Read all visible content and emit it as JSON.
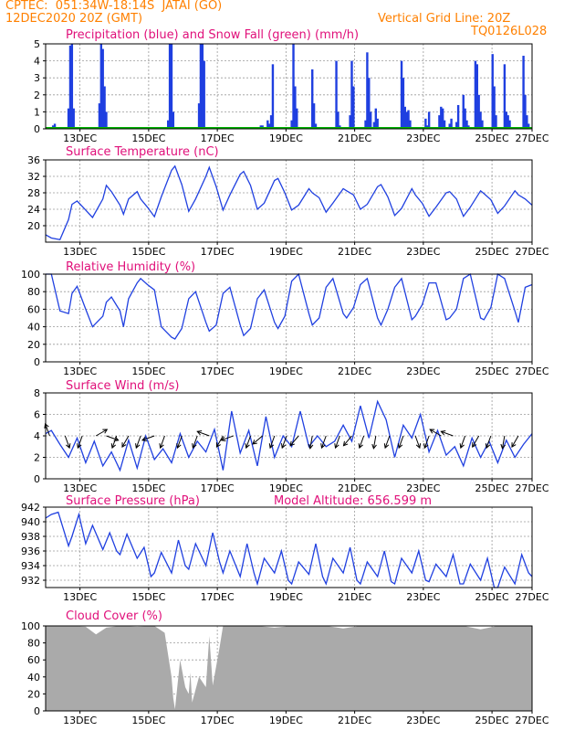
{
  "header": {
    "line1": "CPTEC:  051:34W-18:14S  JATAI (GO)",
    "line2": "12DEC2020 20Z (GMT)",
    "grid_note": "Vertical Grid Line: 20Z",
    "model_code": "TQ0126L028"
  },
  "colors": {
    "header": "#ff8000",
    "panel_title": "#e0107a",
    "precip": "#1f3fe0",
    "snow": "#00b400",
    "line": "#2040e0",
    "cloud": "#aaaaaa",
    "wind_arrow": "#000000",
    "grid": "#9a9a9a"
  },
  "time_axis": {
    "labels": [
      "13DEC",
      "15DEC",
      "17DEC",
      "19DEC",
      "21DEC",
      "23DEC",
      "25DEC",
      "27DEC"
    ],
    "range_days": [
      12.833,
      27.0
    ]
  },
  "chart_data": [
    {
      "id": "precip",
      "type": "bar",
      "title": "Precipitation (blue) and Snow Fall (green) (mm/h)",
      "ylim": [
        0,
        5
      ],
      "yticks": [
        0,
        1,
        2,
        3,
        4,
        5
      ],
      "grid": true,
      "x": [
        13.05,
        13.1,
        13.15,
        13.5,
        13.55,
        13.6,
        13.65,
        14.4,
        14.45,
        14.5,
        14.55,
        14.6,
        16.4,
        16.45,
        16.5,
        16.55,
        17.3,
        17.35,
        17.4,
        17.45,
        19.1,
        19.15,
        19.3,
        19.35,
        19.4,
        19.45,
        20.0,
        20.05,
        20.1,
        20.15,
        20.6,
        20.65,
        20.7,
        21.3,
        21.35,
        21.4,
        21.7,
        21.75,
        21.8,
        22.15,
        22.2,
        22.25,
        22.3,
        22.4,
        22.45,
        22.5,
        23.2,
        23.25,
        23.3,
        23.35,
        23.4,
        23.45,
        23.9,
        23.95,
        24.0,
        24.3,
        24.35,
        24.4,
        24.45,
        24.6,
        24.65,
        24.8,
        24.85,
        25.0,
        25.05,
        25.1,
        25.15,
        25.35,
        25.4,
        25.45,
        25.5,
        25.55,
        25.85,
        25.9,
        25.95,
        26.2,
        26.25,
        26.3,
        26.35,
        26.75,
        26.8,
        26.85,
        26.9
      ],
      "values": [
        0.2,
        0.3,
        0.1,
        1.2,
        4.9,
        5.0,
        1.2,
        1.5,
        5.0,
        4.7,
        2.5,
        1.0,
        0.5,
        5.0,
        5.0,
        1.0,
        1.5,
        5.0,
        5.0,
        4.0,
        0.2,
        0.2,
        0.5,
        0.3,
        0.8,
        3.8,
        0.5,
        5.0,
        2.5,
        1.2,
        3.5,
        1.5,
        0.3,
        4.0,
        1.0,
        0.2,
        0.8,
        4.0,
        2.5,
        0.5,
        4.5,
        3.0,
        1.0,
        0.4,
        1.2,
        0.6,
        4.0,
        3.0,
        1.3,
        1.0,
        1.1,
        0.5,
        0.6,
        0.2,
        1.0,
        0.8,
        1.3,
        1.2,
        0.5,
        0.3,
        0.6,
        0.4,
        1.4,
        2.0,
        1.2,
        0.5,
        0.2,
        4.0,
        3.8,
        2.0,
        1.0,
        0.5,
        4.4,
        2.5,
        0.8,
        3.8,
        1.0,
        0.8,
        0.5,
        4.3,
        2.0,
        0.8,
        0.3
      ],
      "snow_values": 0
    },
    {
      "id": "temperature",
      "type": "line",
      "title": "Surface Temperature (nC)",
      "ylim": [
        16,
        36
      ],
      "yticks": [
        20,
        24,
        28,
        32,
        36
      ],
      "grid": true,
      "x": [
        12.833,
        13.0,
        13.25,
        13.5,
        13.6,
        13.75,
        14.0,
        14.2,
        14.5,
        14.6,
        14.75,
        15.0,
        15.1,
        15.25,
        15.5,
        15.6,
        15.8,
        16.0,
        16.2,
        16.5,
        16.6,
        16.8,
        17.0,
        17.2,
        17.5,
        17.6,
        17.8,
        18.0,
        18.2,
        18.5,
        18.6,
        18.8,
        19.0,
        19.2,
        19.5,
        19.6,
        19.8,
        20.0,
        20.2,
        20.5,
        20.6,
        20.8,
        21.0,
        21.2,
        21.5,
        21.6,
        21.8,
        22.0,
        22.2,
        22.5,
        22.6,
        22.8,
        23.0,
        23.2,
        23.5,
        23.6,
        23.8,
        24.0,
        24.2,
        24.5,
        24.6,
        24.8,
        25.0,
        25.2,
        25.5,
        25.6,
        25.8,
        26.0,
        26.2,
        26.5,
        26.6,
        26.8,
        27.0
      ],
      "values": [
        17.8,
        17.0,
        16.6,
        21.5,
        25.2,
        26.0,
        23.8,
        22.0,
        26.5,
        29.8,
        28.3,
        25.0,
        22.8,
        26.5,
        28.3,
        26.5,
        24.5,
        22.2,
        27.0,
        33.5,
        34.5,
        30.0,
        23.5,
        26.5,
        32.0,
        34.2,
        29.5,
        23.8,
        27.5,
        32.5,
        33.2,
        29.8,
        24.0,
        25.5,
        31.0,
        31.5,
        28.0,
        23.8,
        25.0,
        29.0,
        28.0,
        26.8,
        23.3,
        25.5,
        29.0,
        28.5,
        27.5,
        24.0,
        25.2,
        29.5,
        30.0,
        27.0,
        22.5,
        24.2,
        29.0,
        27.5,
        25.5,
        22.3,
        24.5,
        28.0,
        28.3,
        26.5,
        22.3,
        24.5,
        28.5,
        27.8,
        26.3,
        23.0,
        24.8,
        28.5,
        27.5,
        26.5,
        25.0
      ]
    },
    {
      "id": "humidity",
      "type": "line",
      "title": "Relative Humidity (%)",
      "ylim": [
        0,
        100
      ],
      "yticks": [
        0,
        20,
        40,
        60,
        80,
        100
      ],
      "grid": true,
      "x": [
        12.833,
        13.0,
        13.25,
        13.5,
        13.6,
        13.75,
        14.0,
        14.2,
        14.5,
        14.6,
        14.75,
        15.0,
        15.1,
        15.25,
        15.5,
        15.6,
        15.8,
        16.0,
        16.2,
        16.5,
        16.6,
        16.8,
        17.0,
        17.2,
        17.5,
        17.6,
        17.8,
        18.0,
        18.2,
        18.5,
        18.6,
        18.8,
        19.0,
        19.2,
        19.5,
        19.6,
        19.8,
        20.0,
        20.2,
        20.5,
        20.6,
        20.8,
        21.0,
        21.2,
        21.5,
        21.6,
        21.8,
        22.0,
        22.2,
        22.5,
        22.6,
        22.8,
        23.0,
        23.2,
        23.5,
        23.6,
        23.8,
        24.0,
        24.2,
        24.5,
        24.6,
        24.8,
        25.0,
        25.2,
        25.5,
        25.6,
        25.8,
        26.0,
        26.2,
        26.5,
        26.6,
        26.8,
        27.0
      ],
      "values": [
        100,
        100,
        58,
        55,
        78,
        86,
        60,
        40,
        52,
        68,
        74,
        58,
        40,
        72,
        90,
        95,
        88,
        82,
        40,
        28,
        26,
        38,
        72,
        80,
        45,
        35,
        42,
        78,
        85,
        42,
        30,
        38,
        72,
        82,
        45,
        38,
        52,
        92,
        100,
        55,
        42,
        50,
        85,
        95,
        55,
        50,
        62,
        88,
        95,
        50,
        42,
        60,
        85,
        95,
        48,
        52,
        65,
        90,
        90,
        48,
        50,
        60,
        95,
        100,
        50,
        48,
        62,
        100,
        95,
        58,
        45,
        85,
        88
      ]
    },
    {
      "id": "wind",
      "type": "line",
      "title": "Surface Wind (m/s)",
      "ylim": [
        0,
        8
      ],
      "yticks": [
        0,
        2,
        4,
        6,
        8
      ],
      "grid": true,
      "x": [
        12.833,
        13.0,
        13.25,
        13.5,
        13.75,
        14.0,
        14.25,
        14.5,
        14.75,
        15.0,
        15.25,
        15.5,
        15.75,
        16.0,
        16.25,
        16.5,
        16.75,
        17.0,
        17.25,
        17.5,
        17.75,
        18.0,
        18.25,
        18.5,
        18.75,
        19.0,
        19.25,
        19.5,
        19.75,
        20.0,
        20.25,
        20.5,
        20.75,
        21.0,
        21.25,
        21.5,
        21.75,
        22.0,
        22.25,
        22.5,
        22.75,
        23.0,
        23.25,
        23.5,
        23.75,
        24.0,
        24.25,
        24.5,
        24.75,
        25.0,
        25.25,
        25.5,
        25.75,
        26.0,
        26.25,
        26.5,
        26.75,
        27.0
      ],
      "values": [
        4.2,
        4.5,
        3.2,
        2.0,
        3.8,
        1.5,
        3.5,
        1.2,
        2.5,
        0.8,
        3.6,
        1.0,
        4.0,
        1.8,
        2.8,
        1.5,
        4.2,
        2.0,
        3.5,
        2.5,
        4.6,
        0.8,
        6.3,
        2.4,
        4.5,
        1.2,
        5.8,
        2.0,
        4.0,
        3.0,
        6.3,
        3.0,
        4.0,
        3.0,
        3.5,
        5.0,
        3.5,
        6.8,
        3.8,
        7.2,
        5.5,
        2.0,
        5.0,
        3.8,
        6.0,
        2.5,
        4.5,
        2.2,
        3.0,
        1.2,
        3.8,
        2.0,
        3.5,
        1.5,
        3.6,
        2.0,
        3.2,
        4.2
      ],
      "arrows": {
        "x": [
          12.95,
          13.4,
          13.9,
          14.3,
          14.6,
          14.9,
          15.25,
          15.6,
          16.0,
          16.3,
          16.8,
          17.25,
          17.6,
          18.0,
          18.3,
          18.8,
          19.15,
          19.5,
          19.85,
          20.2,
          20.6,
          21.0,
          21.4,
          21.75,
          22.1,
          22.45,
          22.85,
          23.25,
          23.6,
          24.0,
          24.35,
          24.7,
          25.05,
          25.45,
          25.8,
          26.2,
          26.6
        ],
        "dir_deg": [
          340,
          160,
          200,
          60,
          110,
          200,
          210,
          200,
          250,
          200,
          200,
          200,
          290,
          210,
          250,
          200,
          230,
          200,
          200,
          220,
          190,
          200,
          200,
          220,
          200,
          190,
          200,
          200,
          160,
          200,
          300,
          290,
          200,
          210,
          200,
          190,
          210
        ]
      }
    },
    {
      "id": "pressure",
      "type": "line",
      "title": "Surface Pressure (hPa)",
      "annotation": "Model Altitude: 656.599  m",
      "ylim": [
        931,
        942
      ],
      "yticks": [
        932,
        934,
        936,
        938,
        940,
        942
      ],
      "grid": true,
      "x": [
        12.833,
        13.0,
        13.2,
        13.5,
        13.6,
        13.8,
        14.0,
        14.2,
        14.5,
        14.7,
        14.9,
        15.0,
        15.2,
        15.5,
        15.7,
        15.9,
        16.0,
        16.2,
        16.5,
        16.7,
        16.9,
        17.0,
        17.2,
        17.5,
        17.7,
        17.9,
        18.0,
        18.2,
        18.5,
        18.7,
        18.9,
        19.0,
        19.2,
        19.5,
        19.7,
        19.9,
        20.0,
        20.2,
        20.5,
        20.7,
        20.9,
        21.0,
        21.2,
        21.5,
        21.7,
        21.9,
        22.0,
        22.2,
        22.5,
        22.7,
        22.9,
        23.0,
        23.2,
        23.5,
        23.7,
        23.9,
        24.0,
        24.2,
        24.5,
        24.7,
        24.9,
        25.0,
        25.2,
        25.5,
        25.7,
        25.9,
        26.0,
        26.2,
        26.5,
        26.7,
        26.9,
        27.0
      ],
      "values": [
        940.5,
        941.0,
        941.3,
        936.7,
        938.0,
        941.0,
        937.0,
        939.5,
        936.2,
        938.5,
        936.0,
        935.5,
        938.3,
        935.0,
        936.5,
        932.5,
        933.0,
        935.8,
        933.0,
        937.5,
        934.0,
        933.5,
        937.0,
        934.0,
        938.5,
        934.5,
        933.0,
        936.0,
        932.5,
        937.0,
        933.0,
        931.5,
        935.0,
        933.0,
        936.0,
        932.0,
        931.5,
        934.5,
        932.8,
        937.0,
        932.5,
        931.5,
        935.0,
        933.0,
        936.5,
        932.0,
        931.5,
        934.5,
        932.5,
        936.0,
        931.8,
        931.5,
        935.0,
        933.0,
        936.0,
        932.0,
        931.8,
        934.2,
        932.5,
        935.5,
        931.5,
        931.5,
        934.2,
        932.0,
        935.0,
        931.0,
        931.0,
        933.8,
        931.5,
        935.5,
        933.0,
        932.5
      ]
    },
    {
      "id": "cloud",
      "type": "area",
      "title": "Cloud Cover (%)",
      "ylim": [
        0,
        100
      ],
      "yticks": [
        0,
        20,
        40,
        60,
        80,
        100
      ],
      "grid": true,
      "x": [
        12.833,
        13.0,
        13.5,
        14.0,
        14.3,
        14.6,
        15.0,
        15.5,
        16.0,
        16.3,
        16.5,
        16.55,
        16.6,
        16.75,
        16.9,
        17.0,
        17.05,
        17.1,
        17.3,
        17.5,
        17.6,
        17.7,
        17.9,
        18.0,
        18.5,
        19.0,
        19.5,
        20.0,
        20.5,
        21.0,
        21.5,
        22.0,
        22.5,
        23.0,
        23.5,
        24.0,
        24.5,
        25.0,
        25.5,
        26.0,
        26.5,
        27.0
      ],
      "values": [
        100,
        100,
        100,
        99,
        90,
        98,
        100,
        99,
        100,
        92,
        40,
        15,
        2,
        60,
        28,
        20,
        45,
        10,
        40,
        28,
        88,
        30,
        75,
        100,
        100,
        100,
        98,
        100,
        100,
        100,
        97,
        100,
        100,
        100,
        100,
        100,
        100,
        100,
        96,
        100,
        100,
        100
      ]
    }
  ]
}
